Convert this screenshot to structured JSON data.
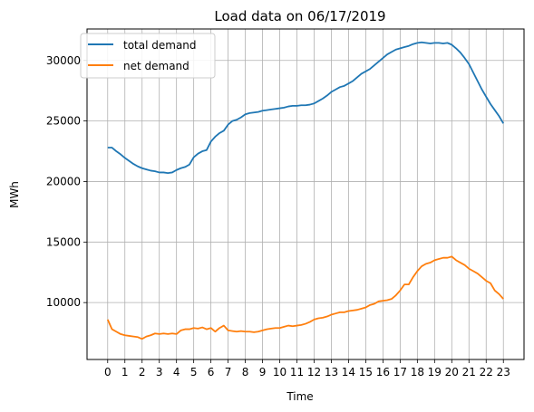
{
  "chart_data": {
    "type": "line",
    "title": "Load data on 06/17/2019",
    "xlabel": "Time",
    "ylabel": "MWh",
    "xlim": [
      -1.2,
      24.2
    ],
    "ylim": [
      5300,
      32600
    ],
    "xticks": [
      "0",
      "1",
      "2",
      "3",
      "4",
      "5",
      "6",
      "7",
      "8",
      "9",
      "10",
      "11",
      "12",
      "13",
      "14",
      "15",
      "16",
      "17",
      "18",
      "19",
      "20",
      "21",
      "22",
      "23"
    ],
    "yticks": [
      10000,
      15000,
      20000,
      25000,
      30000
    ],
    "ytick_labels": [
      "10000",
      "15000",
      "20000",
      "25000",
      "30000"
    ],
    "grid": true,
    "legend_position": "upper-left",
    "series": [
      {
        "name": "total demand",
        "color": "#1f77b4",
        "x": [
          0,
          0.25,
          0.5,
          0.75,
          1,
          1.25,
          1.5,
          1.75,
          2,
          2.25,
          2.5,
          2.75,
          3,
          3.25,
          3.5,
          3.75,
          4,
          4.25,
          4.5,
          4.75,
          5,
          5.25,
          5.5,
          5.75,
          6,
          6.25,
          6.5,
          6.75,
          7,
          7.25,
          7.5,
          7.75,
          8,
          8.25,
          8.5,
          8.75,
          9,
          9.25,
          9.5,
          9.75,
          10,
          10.25,
          10.5,
          10.75,
          11,
          11.25,
          11.5,
          11.75,
          12,
          12.25,
          12.5,
          12.75,
          13,
          13.25,
          13.5,
          13.75,
          14,
          14.25,
          14.5,
          14.75,
          15,
          15.25,
          15.5,
          15.75,
          16,
          16.25,
          16.5,
          16.75,
          17,
          17.25,
          17.5,
          17.75,
          18,
          18.25,
          18.5,
          18.75,
          19,
          19.25,
          19.5,
          19.75,
          20,
          20.25,
          20.5,
          20.75,
          21,
          21.25,
          21.5,
          21.75,
          22,
          22.25,
          22.5,
          22.75,
          23
        ],
        "values": [
          22800,
          22800,
          22500,
          22250,
          21950,
          21700,
          21450,
          21250,
          21100,
          21000,
          20900,
          20850,
          20750,
          20750,
          20700,
          20750,
          20950,
          21100,
          21200,
          21400,
          22000,
          22300,
          22500,
          22600,
          23300,
          23700,
          24000,
          24200,
          24700,
          25000,
          25100,
          25300,
          25550,
          25650,
          25700,
          25750,
          25850,
          25900,
          25950,
          26000,
          26050,
          26100,
          26200,
          26250,
          26250,
          26300,
          26300,
          26350,
          26450,
          26650,
          26850,
          27100,
          27400,
          27600,
          27800,
          27900,
          28100,
          28300,
          28600,
          28900,
          29100,
          29300,
          29600,
          29900,
          30200,
          30500,
          30700,
          30900,
          31000,
          31100,
          31200,
          31350,
          31450,
          31500,
          31450,
          31400,
          31450,
          31450,
          31400,
          31450,
          31300,
          31000,
          30650,
          30200,
          29700,
          29000,
          28300,
          27600,
          27000,
          26400,
          25900,
          25400,
          24800
        ]
      },
      {
        "name": "net demand",
        "color": "#ff7f0e",
        "x": [
          0,
          0.25,
          0.5,
          0.75,
          1,
          1.25,
          1.5,
          1.75,
          2,
          2.25,
          2.5,
          2.75,
          3,
          3.25,
          3.5,
          3.75,
          4,
          4.25,
          4.5,
          4.75,
          5,
          5.25,
          5.5,
          5.75,
          6,
          6.25,
          6.5,
          6.75,
          7,
          7.25,
          7.5,
          7.75,
          8,
          8.25,
          8.5,
          8.75,
          9,
          9.25,
          9.5,
          9.75,
          10,
          10.25,
          10.5,
          10.75,
          11,
          11.25,
          11.5,
          11.75,
          12,
          12.25,
          12.5,
          12.75,
          13,
          13.25,
          13.5,
          13.75,
          14,
          14.25,
          14.5,
          14.75,
          15,
          15.25,
          15.5,
          15.75,
          16,
          16.25,
          16.5,
          16.75,
          17,
          17.25,
          17.5,
          17.75,
          18,
          18.25,
          18.5,
          18.75,
          19,
          19.25,
          19.5,
          19.75,
          20,
          20.25,
          20.5,
          20.75,
          21,
          21.25,
          21.5,
          21.75,
          22,
          22.25,
          22.5,
          22.75,
          23
        ],
        "values": [
          8600,
          7800,
          7600,
          7400,
          7300,
          7250,
          7200,
          7150,
          7000,
          7200,
          7300,
          7450,
          7400,
          7450,
          7400,
          7450,
          7400,
          7700,
          7800,
          7800,
          7900,
          7850,
          7950,
          7800,
          7900,
          7600,
          7900,
          8100,
          7700,
          7650,
          7600,
          7650,
          7600,
          7600,
          7550,
          7600,
          7700,
          7800,
          7850,
          7900,
          7900,
          8000,
          8100,
          8050,
          8100,
          8150,
          8250,
          8400,
          8600,
          8700,
          8750,
          8850,
          9000,
          9100,
          9200,
          9200,
          9300,
          9350,
          9400,
          9500,
          9600,
          9800,
          9900,
          10100,
          10150,
          10200,
          10300,
          10600,
          11000,
          11500,
          11500,
          12100,
          12600,
          13000,
          13200,
          13300,
          13500,
          13600,
          13700,
          13700,
          13800,
          13500,
          13300,
          13100,
          12800,
          12600,
          12400,
          12100,
          11800,
          11600,
          11000,
          10700,
          10300
        ]
      }
    ]
  }
}
